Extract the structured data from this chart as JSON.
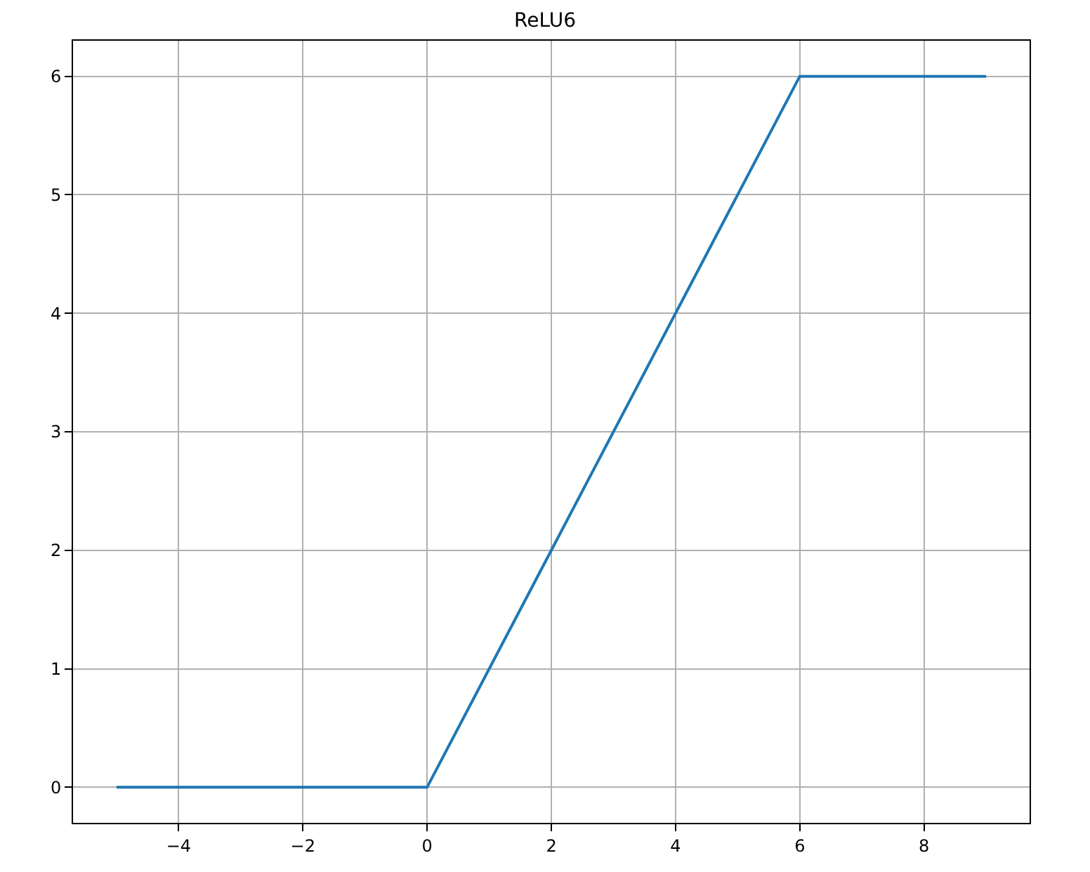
{
  "chart_data": {
    "type": "line",
    "title": "ReLU6",
    "x": [
      -5,
      0,
      6,
      9
    ],
    "series": [
      {
        "color": "#1f77b4",
        "values": [
          0,
          0,
          6,
          6
        ]
      }
    ],
    "xlim": [
      -5.7,
      9.7
    ],
    "xticks": [
      {
        "value": -4,
        "label": "−4"
      },
      {
        "value": -2,
        "label": "−2"
      },
      0,
      2,
      4,
      6,
      8
    ],
    "ylim": [
      -0.3,
      6.3
    ],
    "yticks": [
      0,
      1,
      2,
      3,
      4,
      5,
      6
    ],
    "grid": true
  }
}
